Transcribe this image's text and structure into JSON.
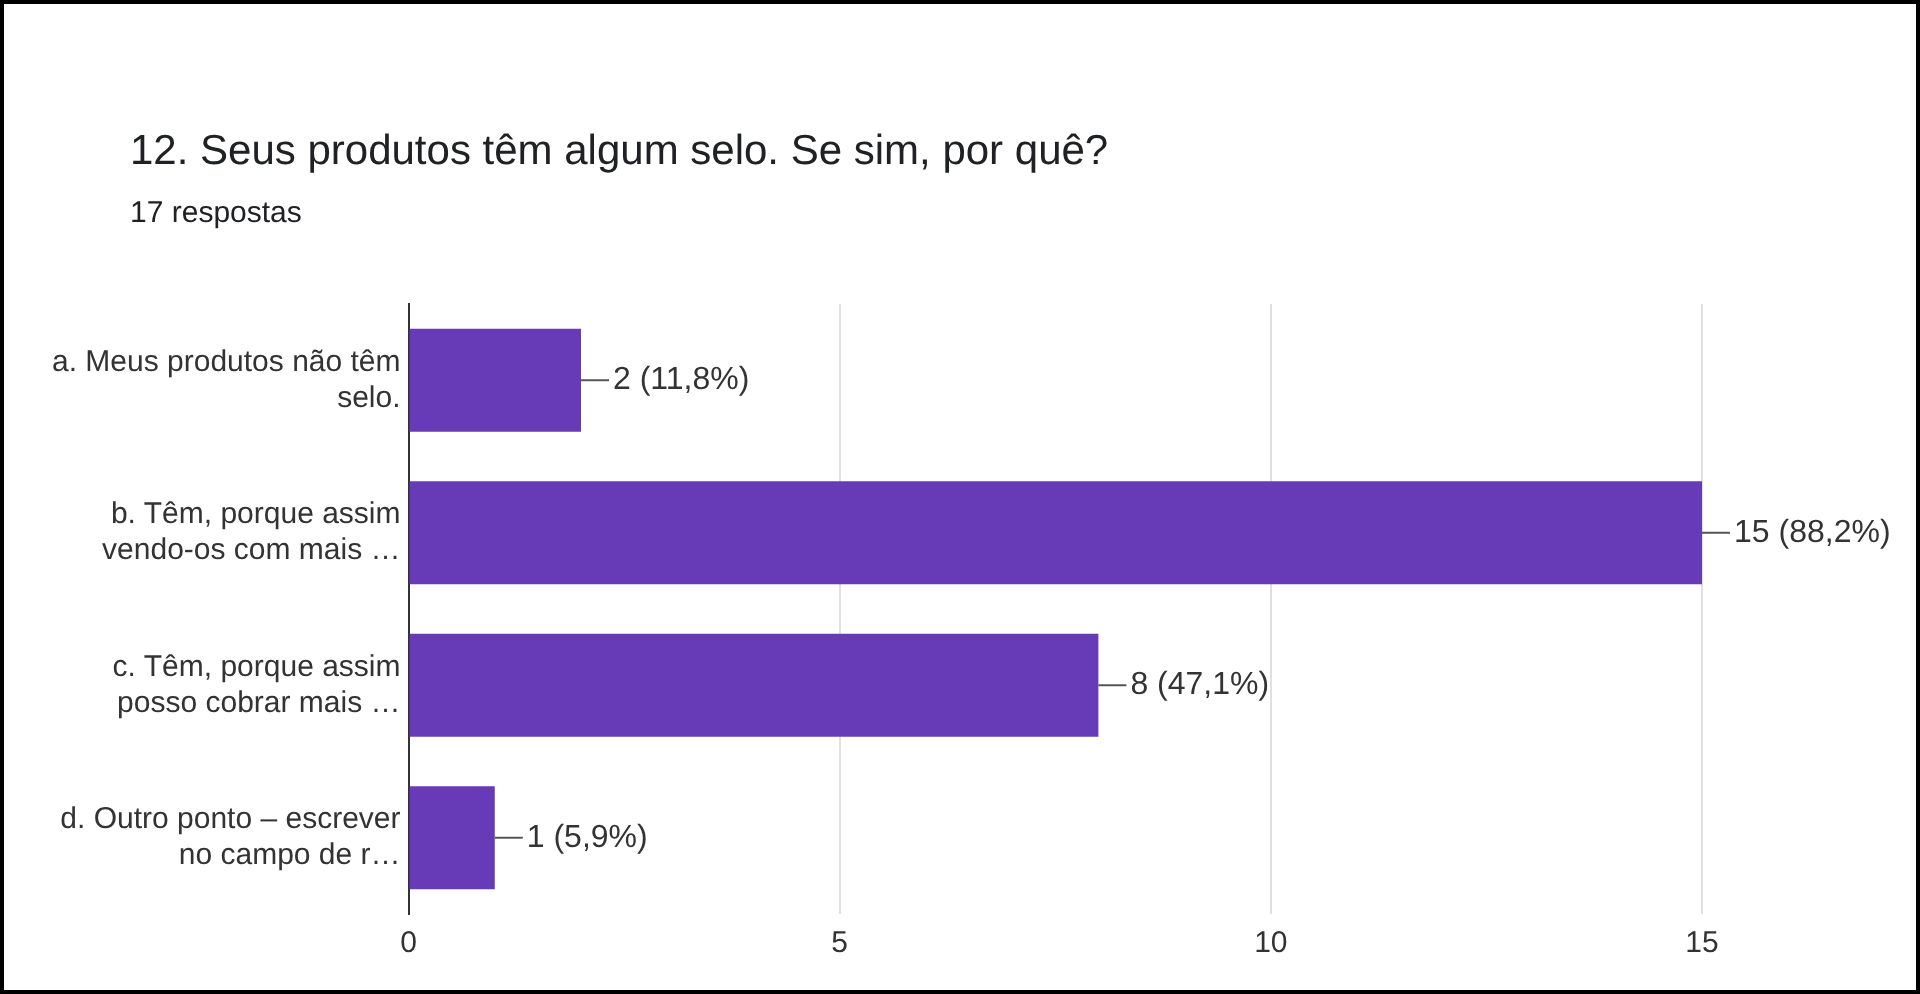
{
  "chart_data": {
    "type": "bar",
    "orientation": "horizontal",
    "title": "12. Seus produtos têm algum selo. Se sim, por quê?",
    "subtitle": "17 respostas",
    "categories": [
      "a. Meus produtos não têm selo.",
      "b. Têm, porque assim vendo-os com mais …",
      "c. Têm, porque assim posso cobrar mais …",
      "d. Outro ponto – escrever no campo de r…"
    ],
    "values": [
      2,
      15,
      8,
      1
    ],
    "value_labels": [
      "2 (11,8%)",
      "15 (88,2%)",
      "8 (47,1%)",
      "1 (5,9%)"
    ],
    "color": "#673ab7",
    "xlim": [
      0,
      15
    ],
    "xticks": [
      0,
      5,
      10,
      15
    ],
    "grid": "x"
  }
}
